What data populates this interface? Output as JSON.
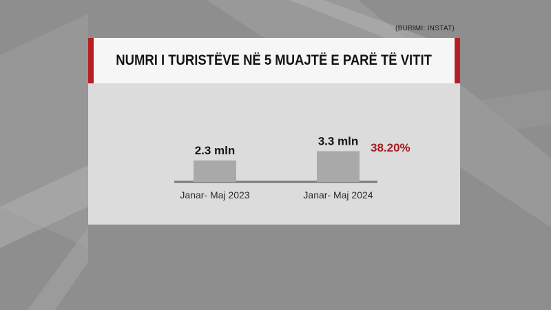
{
  "source": "(BURIMI: INSTAT)",
  "title": "NUMRI I TURISTËVE NË 5 MUAJTË E PARË TË VITIT",
  "change_label": "38.20%",
  "colors": {
    "accent": "#b51f24",
    "change_text": "#a51c22",
    "bar": "#a9a9a9",
    "panel": "#dcdcdc",
    "baseline": "#7a7a7a"
  },
  "chart_data": {
    "type": "bar",
    "title": "NUMRI I TURISTËVE NË 5 MUAJTË E PARË TË VITIT",
    "categories": [
      "Janar- Maj 2023",
      "Janar- Maj 2024"
    ],
    "values": [
      2.3,
      3.3
    ],
    "data_labels": [
      "2.3 mln",
      "3.3 mln"
    ],
    "unit": "mln",
    "annotation": "38.20%",
    "xlabel": "",
    "ylabel": "",
    "grid": false,
    "legend": "none"
  }
}
